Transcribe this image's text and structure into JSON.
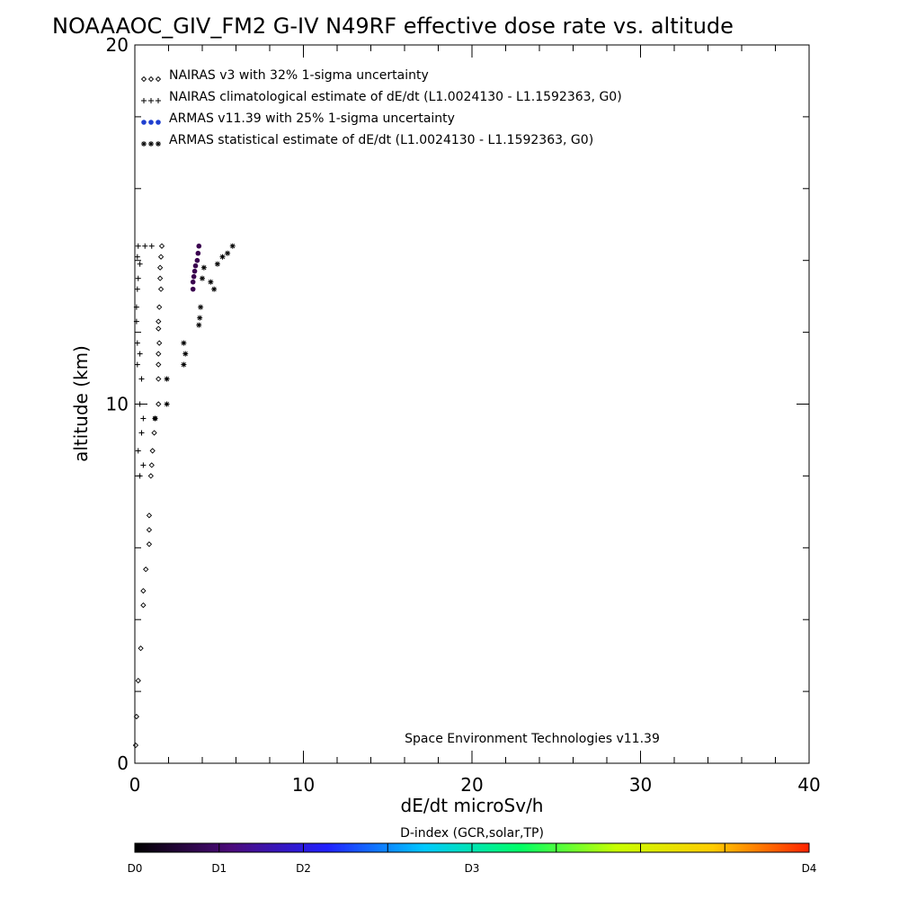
{
  "chart_data": {
    "type": "scatter",
    "title": "NOAAAOC_GIV_FM2 G-IV   N49RF  effective dose rate vs. altitude",
    "xlabel": "dE/dt microSv/h",
    "ylabel": "altitude (km)",
    "xlim": [
      0,
      40
    ],
    "ylim": [
      0,
      20
    ],
    "x_ticks": [
      "0",
      "10",
      "20",
      "30",
      "40"
    ],
    "y_ticks": [
      "0",
      "10",
      "20"
    ],
    "grid": false,
    "legend_position": "top-left",
    "legend": [
      {
        "marker": "diamond",
        "label": "NAIRAS v3 with 32% 1-sigma uncertainty"
      },
      {
        "marker": "plus",
        "label": "NAIRAS climatological estimate of dE/dt (L1.0024130 - L1.1592363, G0)"
      },
      {
        "marker": "dot",
        "label": "ARMAS v11.39 with 25% 1-sigma uncertainty"
      },
      {
        "marker": "asterisk",
        "label": "ARMAS statistical estimate of dE/dt (L1.0024130 - L1.1592363, G0)"
      }
    ],
    "annotation": "Space Environment Technologies v11.39",
    "series": [
      {
        "marker": "diamond",
        "points": [
          [
            1.6,
            14.4
          ],
          [
            1.55,
            14.1
          ],
          [
            1.5,
            13.8
          ],
          [
            1.5,
            13.5
          ],
          [
            1.55,
            13.2
          ],
          [
            1.45,
            12.7
          ],
          [
            1.4,
            12.3
          ],
          [
            1.4,
            12.1
          ],
          [
            1.45,
            11.7
          ],
          [
            1.4,
            11.4
          ],
          [
            1.4,
            11.1
          ],
          [
            1.4,
            10.7
          ],
          [
            1.4,
            10.0
          ],
          [
            1.2,
            9.6
          ],
          [
            1.15,
            9.2
          ],
          [
            1.05,
            8.7
          ],
          [
            1.0,
            8.3
          ],
          [
            0.95,
            8.0
          ],
          [
            0.85,
            6.9
          ],
          [
            0.85,
            6.5
          ],
          [
            0.85,
            6.1
          ],
          [
            0.65,
            5.4
          ],
          [
            0.5,
            4.8
          ],
          [
            0.5,
            4.4
          ],
          [
            0.35,
            3.2
          ],
          [
            0.2,
            2.3
          ],
          [
            0.1,
            1.3
          ],
          [
            0.05,
            0.5
          ]
        ]
      },
      {
        "marker": "plus",
        "points": [
          [
            0.2,
            14.4
          ],
          [
            0.6,
            14.4
          ],
          [
            1.0,
            14.4
          ],
          [
            0.15,
            14.1
          ],
          [
            0.3,
            13.9
          ],
          [
            0.2,
            13.5
          ],
          [
            0.15,
            13.2
          ],
          [
            0.1,
            12.7
          ],
          [
            0.1,
            12.3
          ],
          [
            0.15,
            11.7
          ],
          [
            0.3,
            11.4
          ],
          [
            0.15,
            11.1
          ],
          [
            0.4,
            10.7
          ],
          [
            0.3,
            10.0
          ],
          [
            0.5,
            9.6
          ],
          [
            0.4,
            9.2
          ],
          [
            0.2,
            8.7
          ],
          [
            0.5,
            8.3
          ],
          [
            0.3,
            8.0
          ]
        ]
      },
      {
        "marker": "dot",
        "color": "#3a004f",
        "points": [
          [
            3.8,
            14.4
          ],
          [
            3.75,
            14.2
          ],
          [
            3.7,
            14.0
          ],
          [
            3.6,
            13.85
          ],
          [
            3.55,
            13.7
          ],
          [
            3.5,
            13.55
          ],
          [
            3.45,
            13.4
          ],
          [
            3.45,
            13.2
          ]
        ]
      },
      {
        "marker": "asterisk",
        "points": [
          [
            5.8,
            14.4
          ],
          [
            5.5,
            14.2
          ],
          [
            5.2,
            14.1
          ],
          [
            4.9,
            13.9
          ],
          [
            4.1,
            13.8
          ],
          [
            4.0,
            13.5
          ],
          [
            4.5,
            13.4
          ],
          [
            4.7,
            13.2
          ],
          [
            3.9,
            12.7
          ],
          [
            3.85,
            12.4
          ],
          [
            3.8,
            12.2
          ],
          [
            2.9,
            11.7
          ],
          [
            3.0,
            11.4
          ],
          [
            2.9,
            11.1
          ],
          [
            1.9,
            10.7
          ],
          [
            1.9,
            10.0
          ],
          [
            1.2,
            9.6
          ]
        ]
      }
    ],
    "colorbar": {
      "title": "D-index (GCR,solar,TP)",
      "tick_labels": [
        {
          "label": "D0",
          "frac": 0.0
        },
        {
          "label": "D1",
          "frac": 0.125
        },
        {
          "label": "D2",
          "frac": 0.25
        },
        {
          "label": "D3",
          "frac": 0.5
        },
        {
          "label": "D4",
          "frac": 1.0
        }
      ],
      "colors": [
        "#000000",
        "#4b0a7a",
        "#2020ff",
        "#00c8ff",
        "#00ff66",
        "#c8ff00",
        "#ffcc00",
        "#ff2200"
      ]
    }
  }
}
